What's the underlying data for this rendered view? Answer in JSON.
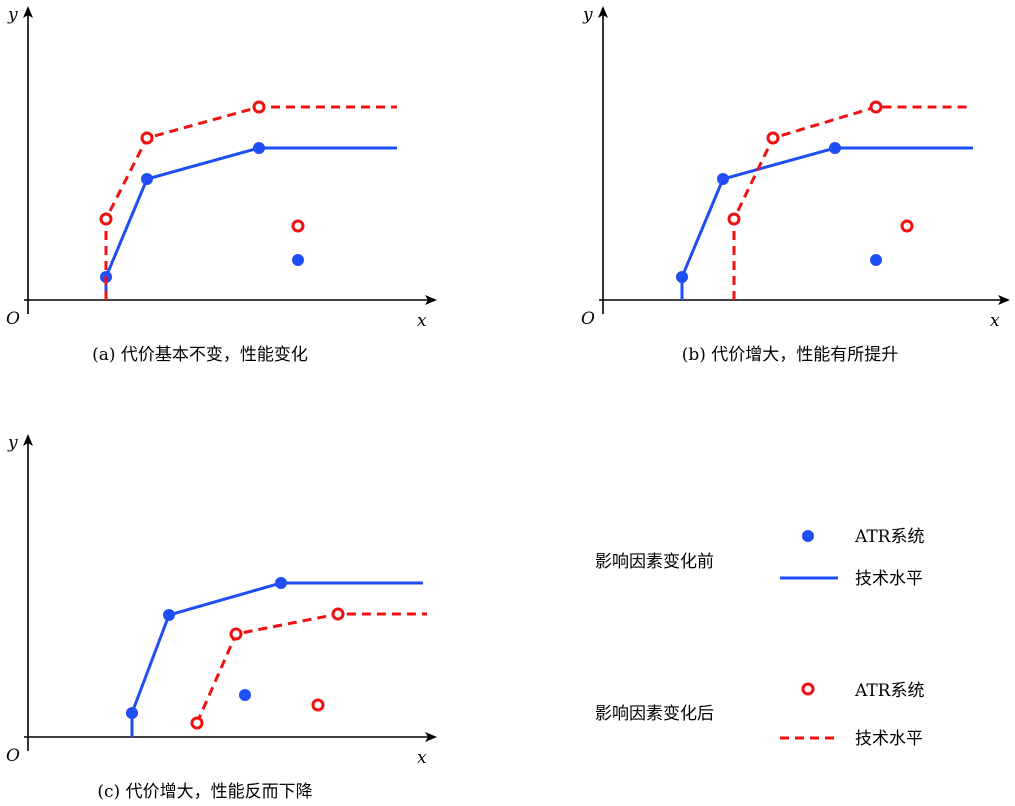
{
  "colors": {
    "before": "#1f4ef5",
    "after": "#f01010",
    "axis": "#000000"
  },
  "axis_labels": {
    "x": "x",
    "y": "y",
    "origin": "O"
  },
  "legend": {
    "before_group": "影响因素变化前",
    "after_group": "影响因素变化后",
    "point_label": "ATR系统",
    "line_label": "技术水平"
  },
  "chart_data": [
    {
      "type": "line",
      "title": "(a) 代价基本不变，性能变化",
      "xlabel": "x",
      "ylabel": "y",
      "series": [
        {
          "name": "技术水平 (变化前)",
          "style": "solid",
          "start": [
            1.95,
            0
          ],
          "points": [
            [
              1.95,
              0.575
            ],
            [
              2.975,
              3.025
            ],
            [
              5.775,
              3.8
            ]
          ],
          "end": [
            9.225,
            3.8
          ]
        },
        {
          "name": "技术水平 (变化后)",
          "style": "dashed",
          "start": [
            1.95,
            0
          ],
          "points": [
            [
              1.95,
              2.025
            ],
            [
              2.975,
              4.05
            ],
            [
              5.775,
              4.825
            ]
          ],
          "end": [
            9.225,
            4.825
          ]
        }
      ],
      "atr": {
        "before": [
          6.75,
          1.0
        ],
        "after": [
          6.75,
          1.85
        ]
      }
    },
    {
      "type": "line",
      "title": "(b) 代价增大，性能有所提升",
      "xlabel": "x",
      "ylabel": "y",
      "series": [
        {
          "name": "技术水平 (变化前)",
          "style": "solid",
          "start": [
            1.975,
            0
          ],
          "points": [
            [
              1.975,
              0.575
            ],
            [
              3.0,
              3.025
            ],
            [
              5.8,
              3.8
            ]
          ],
          "end": [
            9.25,
            3.8
          ]
        },
        {
          "name": "技术水平 (变化后)",
          "style": "dashed",
          "start": [
            3.275,
            0
          ],
          "points": [
            [
              3.275,
              2.025
            ],
            [
              4.25,
              4.05
            ],
            [
              6.825,
              4.825
            ]
          ],
          "end": [
            9.125,
            4.825
          ]
        }
      ],
      "atr": {
        "before": [
          6.825,
          1.0
        ],
        "after": [
          7.6,
          1.85
        ]
      }
    },
    {
      "type": "line",
      "title": "(c) 代价增大，性能反而下降",
      "xlabel": "x",
      "ylabel": "y",
      "series": [
        {
          "name": "技术水平 (变化前)",
          "style": "solid",
          "start": [
            2.6,
            0
          ],
          "points": [
            [
              2.6,
              0.6
            ],
            [
              3.525,
              3.05
            ],
            [
              6.325,
              3.85
            ]
          ],
          "end": [
            9.875,
            3.85
          ]
        },
        {
          "name": "技术水平 (变化后)",
          "style": "dashed",
          "start": null,
          "points": [
            [
              4.225,
              0.35
            ],
            [
              5.2,
              2.575
            ],
            [
              7.75,
              3.075
            ]
          ],
          "end": [
            9.975,
            3.075
          ]
        }
      ],
      "atr": {
        "before": [
          5.425,
          1.05
        ],
        "after": [
          7.25,
          0.8
        ]
      }
    }
  ]
}
